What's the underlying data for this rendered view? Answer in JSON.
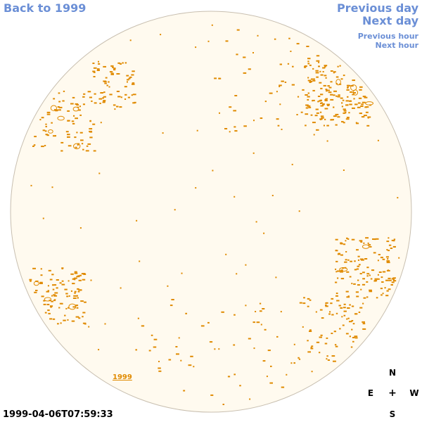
{
  "nav": {
    "back": "Back to 1999",
    "previous_day": "Previous day",
    "next_day": "Next day",
    "previous_hour": "Previous hour",
    "next_hour": "Next hour"
  },
  "sky": {
    "year_label": "1999",
    "timestamp": "1999-04-06T07:59:33"
  },
  "compass": {
    "north": "N",
    "east": "E",
    "west": "W",
    "south": "S",
    "center": "+"
  },
  "colors": {
    "link": "#6b8fd6",
    "disk_fill": "#fffaef",
    "disk_border": "#c8bfb0",
    "feature": "#e08a00"
  }
}
